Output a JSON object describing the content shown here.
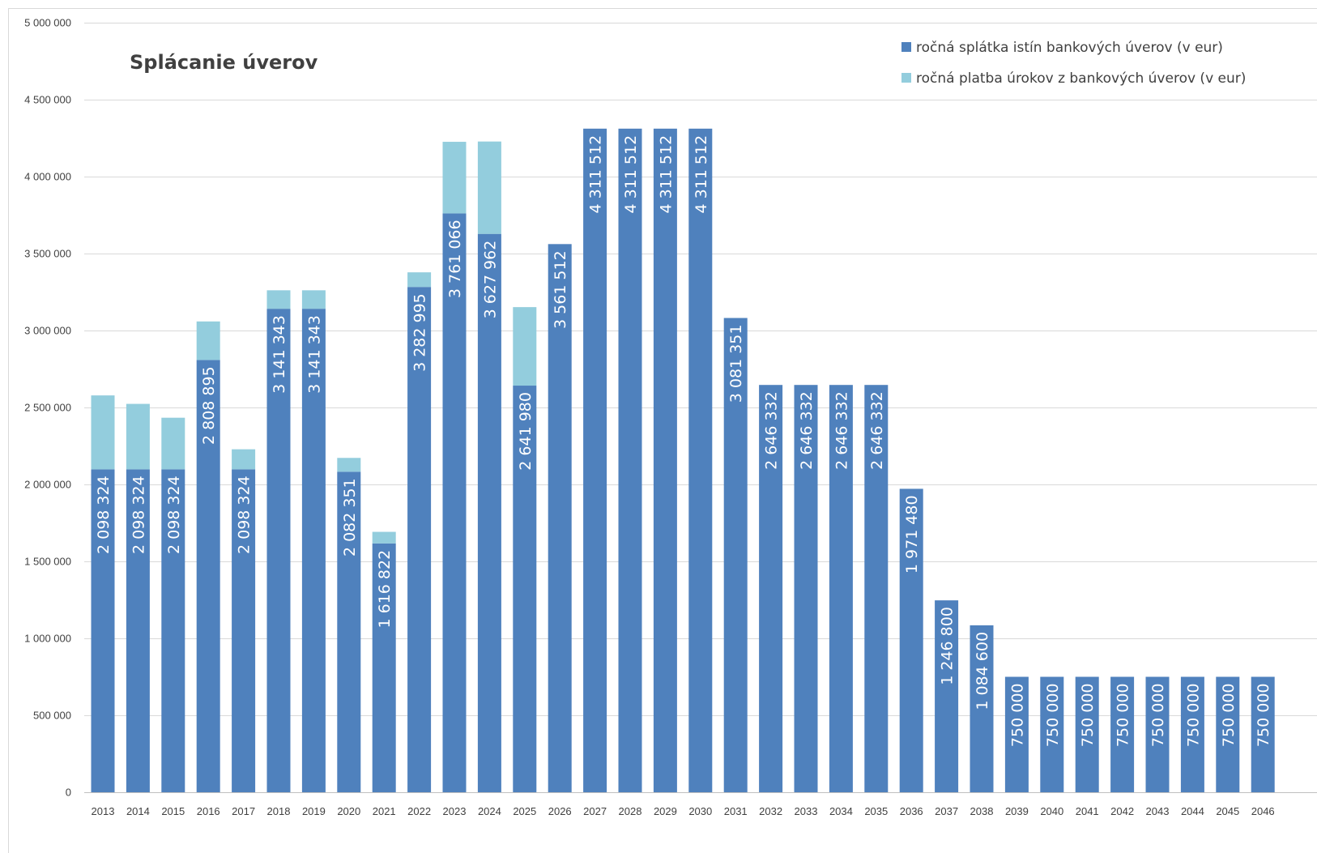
{
  "chart_data": {
    "type": "bar",
    "stacked": true,
    "title": "Splácanie úverov",
    "xlabel": "",
    "ylabel": "",
    "ylim": [
      0,
      5000000
    ],
    "grid": true,
    "legend_position": "top-right",
    "y_ticks": [
      "0",
      "500 000",
      "1 000 000",
      "1 500 000",
      "2 000 000",
      "2 500 000",
      "3 000 000",
      "3 500 000",
      "4 000 000",
      "4 500 000",
      "5 000 000"
    ],
    "categories": [
      "2013",
      "2014",
      "2015",
      "2016",
      "2017",
      "2018",
      "2019",
      "2020",
      "2021",
      "2022",
      "2023",
      "2024",
      "2025",
      "2026",
      "2027",
      "2028",
      "2029",
      "2030",
      "2031",
      "2032",
      "2033",
      "2034",
      "2035",
      "2036",
      "2037",
      "2038",
      "2039",
      "2040",
      "2041",
      "2042",
      "2043",
      "2044",
      "2045",
      "2046"
    ],
    "series": [
      {
        "name": "ročná splátka istín bankových úverov (v eur)",
        "color": "#4f81bd",
        "values": [
          2098324,
          2098324,
          2098324,
          2808895,
          2098324,
          3141343,
          3141343,
          2082351,
          1616822,
          3282995,
          3761066,
          3627962,
          2641980,
          3561512,
          4311512,
          4311512,
          4311512,
          4311512,
          3081351,
          2646332,
          2646332,
          2646332,
          2646332,
          1971480,
          1246800,
          1084600,
          750000,
          750000,
          750000,
          750000,
          750000,
          750000,
          750000,
          750000
        ],
        "labels": [
          "2 098 324",
          "2 098 324",
          "2 098 324",
          "2 808 895",
          "2 098 324",
          "3 141 343",
          "3 141 343",
          "2 082 351",
          "1 616 822",
          "3 282 995",
          "3 761 066",
          "3 627 962",
          "2 641 980",
          "3 561 512",
          "4 311 512",
          "4 311 512",
          "4 311 512",
          "4 311 512",
          "3 081 351",
          "2 646 332",
          "2 646 332",
          "2 646 332",
          "2 646 332",
          "1 971 480",
          "1 246 800",
          "1 084 600",
          "750 000",
          "750 000",
          "750 000",
          "750 000",
          "750 000",
          "750 000",
          "750 000",
          "750 000"
        ]
      },
      {
        "name": "ročná platba úrokov z bankových úverov (v eur)",
        "color": "#93cddd",
        "values": [
          480000,
          425000,
          335000,
          250000,
          130000,
          120000,
          120000,
          90000,
          75000,
          95000,
          465000,
          600000,
          510000,
          0,
          0,
          0,
          0,
          0,
          0,
          0,
          0,
          0,
          0,
          0,
          0,
          0,
          0,
          0,
          0,
          0,
          0,
          0,
          0,
          0
        ]
      }
    ]
  }
}
